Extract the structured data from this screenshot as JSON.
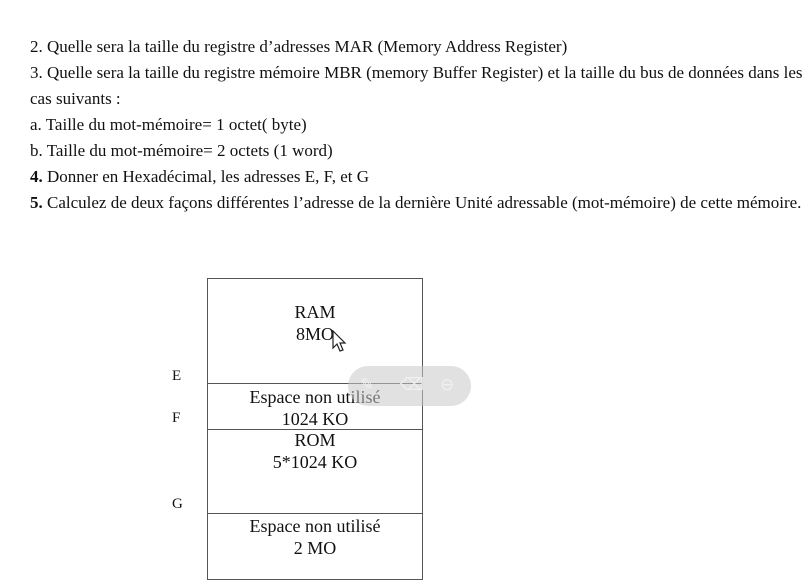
{
  "questions": [
    {
      "num": "2.",
      "bold": false,
      "text": " Quelle sera la taille du registre d’adresses MAR (Memory Address Register)"
    },
    {
      "num": "3.",
      "bold": false,
      "text": " Quelle sera la taille du registre mémoire MBR (memory Buffer Register) et la taille du bus de données dans les cas suivants :"
    },
    {
      "num": "a.",
      "bold": false,
      "text": " Taille du mot-mémoire= 1 octet( byte)"
    },
    {
      "num": "b.",
      "bold": false,
      "text": " Taille du mot-mémoire= 2 octets (1 word)"
    },
    {
      "num": "4.",
      "bold": true,
      "text": " Donner en Hexadécimal, les adresses E, F, et G"
    },
    {
      "num": "5.",
      "bold": true,
      "text": " Calculez de deux façons différentes l’adresse de la dernière Unité adressable (mot-mémoire) de cette mémoire."
    }
  ],
  "memory_map": {
    "blocks": [
      {
        "line1": "RAM",
        "line2": "8MO"
      },
      {
        "line1": "Espace non utilisé",
        "line2": "1024 KO"
      },
      {
        "line1": "ROM",
        "line2": "5*1024 KO"
      },
      {
        "line1": "Espace non utilisé",
        "line2": "2 MO"
      }
    ],
    "address_labels": [
      "E",
      "F",
      "G"
    ]
  },
  "toolbar": {
    "icons": [
      "pen-icon",
      "eraser-icon",
      "minus-circle-icon"
    ]
  }
}
